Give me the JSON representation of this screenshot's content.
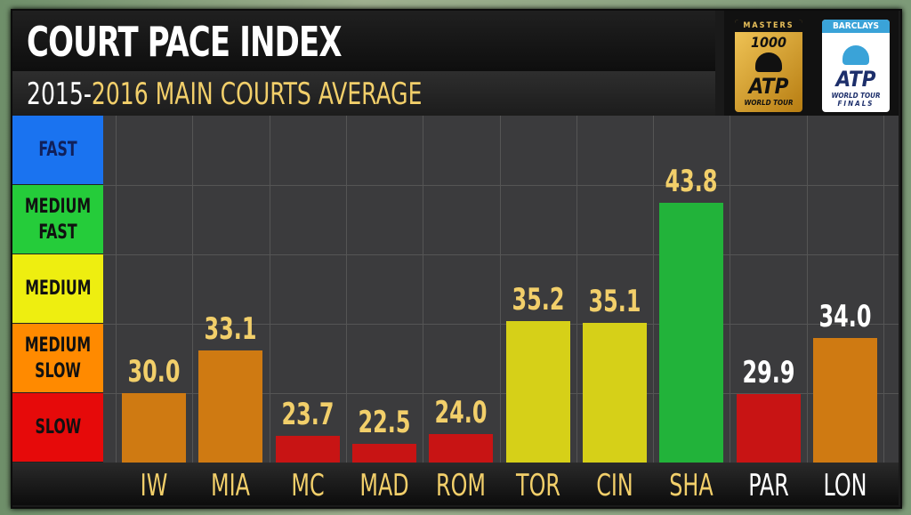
{
  "header": {
    "title": "COURT PACE INDEX",
    "subtitle_a": "2015-",
    "subtitle_b": "2016 MAIN COURTS AVERAGE"
  },
  "logos": {
    "masters": {
      "cap": "MASTERS",
      "num": "1000",
      "big": "ATP",
      "small": "WORLD TOUR"
    },
    "finals": {
      "cap": "BARCLAYS",
      "big": "ATP",
      "small": "WORLD TOUR",
      "small2": "FINALS"
    }
  },
  "chart_data": {
    "type": "bar",
    "title": "COURT PACE INDEX",
    "subtitle": "2015-2016 MAIN COURTS AVERAGE",
    "categories": [
      "IW",
      "MIA",
      "MC",
      "MAD",
      "ROM",
      "TOR",
      "CIN",
      "SHA",
      "PAR",
      "LON"
    ],
    "values": [
      30.0,
      33.1,
      23.7,
      22.5,
      24.0,
      35.2,
      35.1,
      43.8,
      29.9,
      34.0
    ],
    "value_labels": [
      "30.0",
      "33.1",
      "23.7",
      "22.5",
      "24.0",
      "35.2",
      "35.1",
      "43.8",
      "29.9",
      "34.0"
    ],
    "bar_colors": [
      "#cf7a12",
      "#cf7a12",
      "#c81414",
      "#c81414",
      "#c81414",
      "#d6d018",
      "#d6d018",
      "#22b33a",
      "#c81414",
      "#cf7a12"
    ],
    "label_colors": [
      "#f2cf6a",
      "#f2cf6a",
      "#f2cf6a",
      "#f2cf6a",
      "#f2cf6a",
      "#f2cf6a",
      "#f2cf6a",
      "#f2cf6a",
      "#ffffff",
      "#ffffff"
    ],
    "legend_bands": [
      {
        "label": "FAST",
        "color": "#1a73f0"
      },
      {
        "label": "MEDIUM FAST",
        "color": "#25cc3a"
      },
      {
        "label": "MEDIUM",
        "color": "#eeee10"
      },
      {
        "label": "MEDIUM SLOW",
        "color": "#ff8a00"
      },
      {
        "label": "SLOW",
        "color": "#e60a0a"
      }
    ],
    "grid": true
  }
}
